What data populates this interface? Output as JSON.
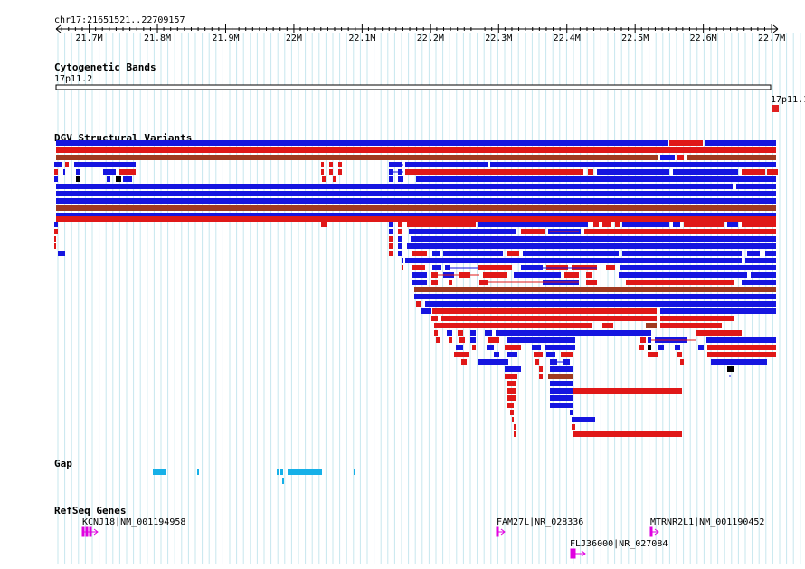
{
  "locus": {
    "label": "chr17:21651521..22709157",
    "start": 21651521,
    "end": 22709157
  },
  "ruler": {
    "ticks": [
      {
        "pos": 21700000,
        "label": "21.7M"
      },
      {
        "pos": 21800000,
        "label": "21.8M"
      },
      {
        "pos": 21900000,
        "label": "21.9M"
      },
      {
        "pos": 22000000,
        "label": "22M"
      },
      {
        "pos": 22100000,
        "label": "22.1M"
      },
      {
        "pos": 22200000,
        "label": "22.2M"
      },
      {
        "pos": 22300000,
        "label": "22.3M"
      },
      {
        "pos": 22400000,
        "label": "22.4M"
      },
      {
        "pos": 22500000,
        "label": "22.5M"
      },
      {
        "pos": 22600000,
        "label": "22.6M"
      },
      {
        "pos": 22700000,
        "label": "22.7M"
      }
    ]
  },
  "tracks": {
    "cytobands": {
      "title": "Cytogenetic Bands",
      "bands": [
        {
          "name": "17p11.2",
          "color": "#ffffff"
        },
        {
          "name": "17p11.1",
          "color": "#e02020"
        }
      ]
    },
    "dgv": {
      "title": "DGV Structural Variants",
      "colors": {
        "gain": "#1515e0",
        "loss": "#e01818",
        "both": "#a03a20",
        "other": "#000000"
      }
    },
    "gap": {
      "title": "Gap",
      "color": "#16b0e8"
    },
    "refseq": {
      "title": "RefSeq Genes",
      "color": "#e000e0",
      "genes": [
        {
          "label": "KCNJ18|NM_001194958"
        },
        {
          "label": "FAM27L|NR_028336"
        },
        {
          "label": "MTRNR2L1|NM_001190452"
        },
        {
          "label": "FLJ36000|NR_027084"
        }
      ]
    }
  }
}
